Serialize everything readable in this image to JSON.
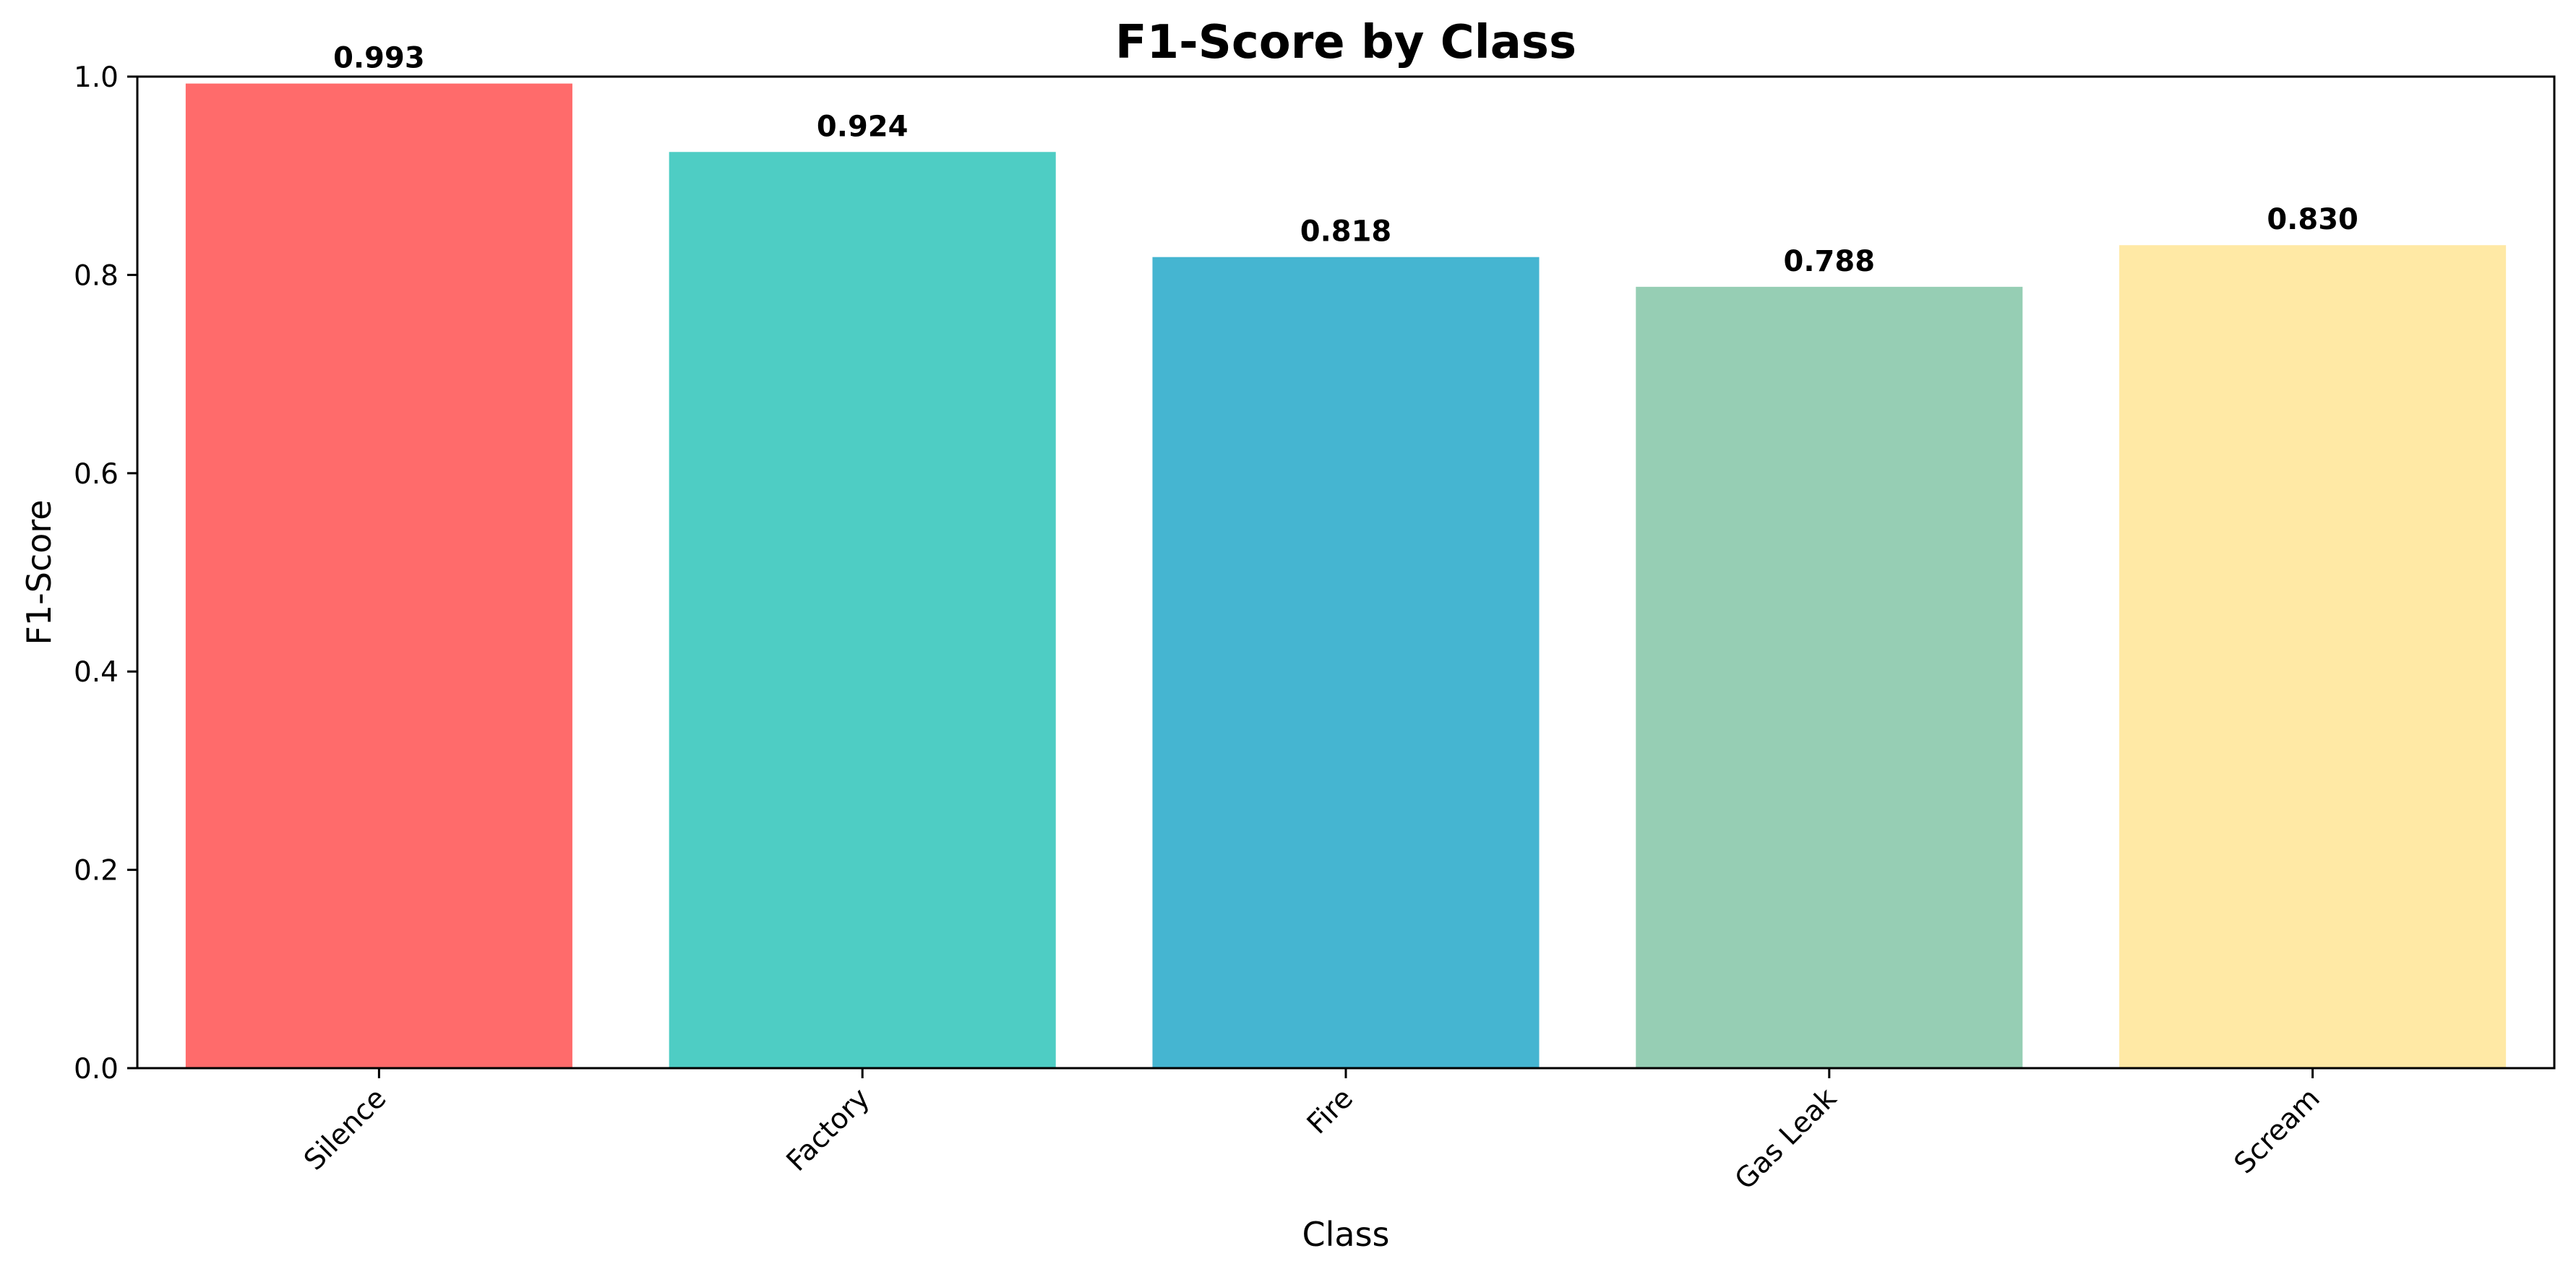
{
  "chart_data": {
    "type": "bar",
    "title": "F1-Score by Class",
    "xlabel": "Class",
    "ylabel": "F1-Score",
    "categories": [
      "Silence",
      "Factory",
      "Fire",
      "Gas Leak",
      "Scream"
    ],
    "values": [
      0.993,
      0.924,
      0.818,
      0.788,
      0.83
    ],
    "value_labels": [
      "0.993",
      "0.924",
      "0.818",
      "0.788",
      "0.830"
    ],
    "colors": [
      "#ff6b6b",
      "#4ecdc4",
      "#45b5d1",
      "#96ceb4",
      "#ffe9a5"
    ],
    "ylim": [
      0,
      1.0
    ],
    "yticks": [
      0.0,
      0.2,
      0.4,
      0.6,
      0.8,
      1.0
    ],
    "ytick_labels": [
      "0.0",
      "0.2",
      "0.4",
      "0.6",
      "0.8",
      "1.0"
    ],
    "grid": false,
    "legend": "none"
  }
}
